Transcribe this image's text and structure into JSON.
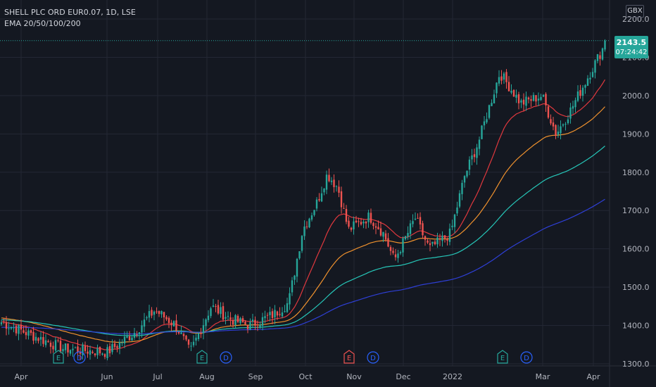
{
  "legend": {
    "symbol_line": "SHELL PLC ORD EUR0.07, 1D, LSE",
    "indicator_line": "EMA 20/50/100/200"
  },
  "currency_label": "GBX",
  "last_price": {
    "value": "2143.5",
    "countdown": "07:24:42"
  },
  "colors": {
    "background": "#141821",
    "grid": "#232734",
    "axis_text": "#b2b5be",
    "up": "#26a69a",
    "down": "#ef5350",
    "ema20": "#e0383e",
    "ema50": "#f0922e",
    "ema100": "#26c6b8",
    "ema200": "#2e3fd6"
  },
  "chart_data": {
    "type": "candlestick",
    "y_axis": {
      "ylim": [
        1290,
        2240
      ],
      "ticks": [
        "1300.0",
        "1400.0",
        "1500.0",
        "1600.0",
        "1700.0",
        "1800.0",
        "1900.0",
        "2000.0",
        "2100.0",
        "2200.0"
      ],
      "position": "right"
    },
    "x_axis": {
      "tick_labels": [
        "Apr",
        "Jun",
        "Jul",
        "Aug",
        "Sep",
        "Oct",
        "Nov",
        "Dec",
        "2022",
        "Mar",
        "Apr"
      ]
    },
    "grid": true,
    "price_anchors": [
      {
        "x": "Apr",
        "close": 1410
      },
      {
        "x": "May",
        "close": 1340
      },
      {
        "x": "Jun",
        "close": 1330
      },
      {
        "x": "Jun",
        "close": 1380
      },
      {
        "x": "Jul",
        "close": 1440
      },
      {
        "x": "Jul",
        "close": 1400
      },
      {
        "x": "Aug",
        "close": 1330
      },
      {
        "x": "Aug",
        "close": 1450
      },
      {
        "x": "Aug",
        "close": 1415
      },
      {
        "x": "Sep",
        "close": 1400
      },
      {
        "x": "Sep",
        "close": 1430
      },
      {
        "x": "Sep",
        "close": 1460
      },
      {
        "x": "Oct",
        "close": 1650
      },
      {
        "x": "Oct",
        "close": 1720
      },
      {
        "x": "Oct",
        "close": 1795
      },
      {
        "x": "Oct",
        "close": 1760
      },
      {
        "x": "Nov",
        "close": 1650
      },
      {
        "x": "Nov",
        "close": 1685
      },
      {
        "x": "Nov",
        "close": 1640
      },
      {
        "x": "Dec",
        "close": 1570
      },
      {
        "x": "Dec",
        "close": 1680
      },
      {
        "x": "Dec",
        "close": 1600
      },
      {
        "x": "2022",
        "close": 1640
      },
      {
        "x": "2022",
        "close": 1790
      },
      {
        "x": "2022",
        "close": 1880
      },
      {
        "x": "Feb",
        "close": 2060
      },
      {
        "x": "Feb",
        "close": 1980
      },
      {
        "x": "Feb",
        "close": 2000
      },
      {
        "x": "Mar",
        "close": 1900
      },
      {
        "x": "Mar",
        "close": 1960
      },
      {
        "x": "Apr",
        "close": 2143.5
      }
    ],
    "ema_series": [
      {
        "name": "EMA 20",
        "period": 20
      },
      {
        "name": "EMA 50",
        "period": 50
      },
      {
        "name": "EMA 100",
        "period": 100
      },
      {
        "name": "EMA 200",
        "period": 200
      }
    ],
    "last_price": 2143.5,
    "events": [
      {
        "label": "E",
        "after": "May",
        "kind": "earnings"
      },
      {
        "label": "D",
        "after": "May",
        "kind": "dividend"
      },
      {
        "label": "E",
        "after": "Aug",
        "kind": "earnings"
      },
      {
        "label": "D",
        "after": "Aug",
        "kind": "dividend"
      },
      {
        "label": "E",
        "after": "Nov",
        "kind": "earnings-negative"
      },
      {
        "label": "D",
        "after": "Nov",
        "kind": "dividend"
      },
      {
        "label": "E",
        "after": "2022",
        "kind": "earnings"
      },
      {
        "label": "D",
        "after": "2022",
        "kind": "dividend"
      }
    ]
  }
}
